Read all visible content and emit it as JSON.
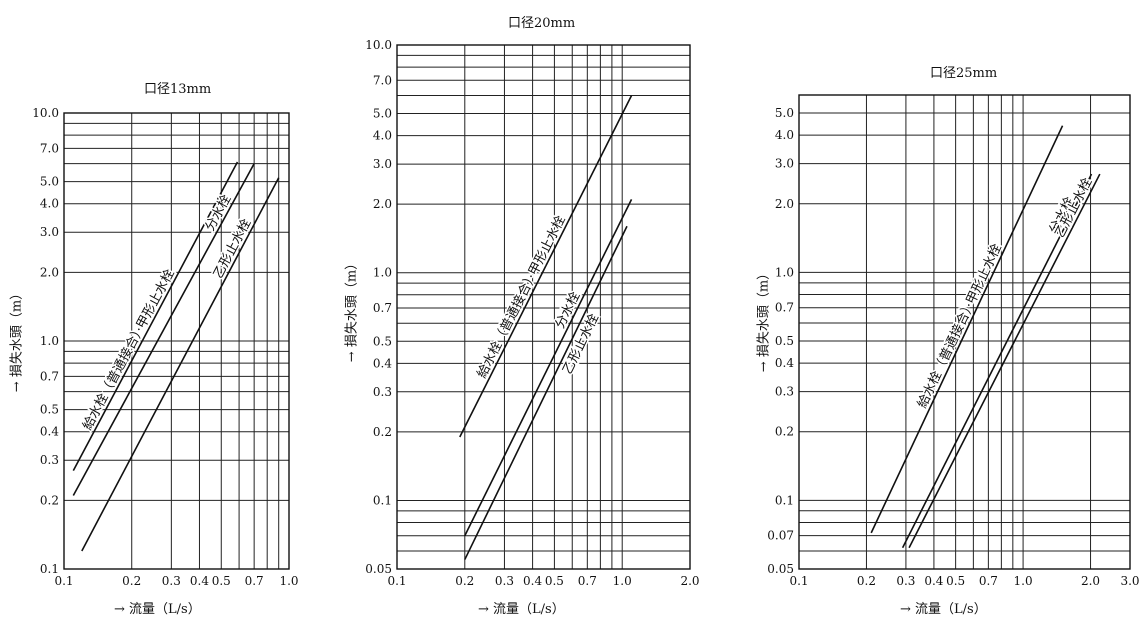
{
  "chart_data": [
    {
      "type": "line",
      "title": "口径13mm",
      "xlabel": "→ 流量（L/s）",
      "ylabel": "→ 損失水頭（m）",
      "xscale": "log",
      "yscale": "log",
      "xlim": [
        0.1,
        1.0
      ],
      "ylim": [
        0.1,
        10.0
      ],
      "x_ticks": [
        0.1,
        0.2,
        0.3,
        0.4,
        0.5,
        0.7,
        1.0
      ],
      "x_tick_labels": [
        "0.1",
        "0.2",
        "0.3",
        "0.4",
        "0.5",
        "0.7",
        "1.0"
      ],
      "y_ticks": [
        0.1,
        0.2,
        0.3,
        0.4,
        0.5,
        0.7,
        1.0,
        2.0,
        3.0,
        4.0,
        5.0,
        7.0,
        10.0
      ],
      "y_tick_labels": [
        "0.1",
        "0.2",
        "0.3",
        "0.4",
        "0.5",
        "0.7",
        "1.0",
        "2.0",
        "3.0",
        "4.0",
        "5.0",
        "7.0",
        "10.0"
      ],
      "grid": true,
      "series": [
        {
          "name": "給水栓（普通接合）·甲形止水栓",
          "x": [
            0.11,
            0.59
          ],
          "y": [
            0.27,
            6.1
          ]
        },
        {
          "name": "分水栓",
          "x": [
            0.11,
            0.7
          ],
          "y": [
            0.21,
            6.0
          ]
        },
        {
          "name": "乙形止水栓",
          "x": [
            0.12,
            0.9
          ],
          "y": [
            0.12,
            5.2
          ]
        }
      ]
    },
    {
      "type": "line",
      "title": "口径20mm",
      "xlabel": "→ 流量（L/s）",
      "ylabel": "→ 損失水頭（m）",
      "xscale": "log",
      "yscale": "log",
      "xlim": [
        0.1,
        2.0
      ],
      "ylim": [
        0.05,
        10.0
      ],
      "x_ticks": [
        0.1,
        0.2,
        0.3,
        0.4,
        0.5,
        0.7,
        1.0,
        2.0
      ],
      "x_tick_labels": [
        "0.1",
        "0.2",
        "0.3",
        "0.4",
        "0.5",
        "0.7",
        "1.0",
        "2.0"
      ],
      "y_ticks": [
        0.05,
        0.1,
        0.2,
        0.3,
        0.4,
        0.5,
        0.7,
        1.0,
        2.0,
        3.0,
        4.0,
        5.0,
        7.0,
        10.0
      ],
      "y_tick_labels": [
        "0.05",
        "0.1",
        "0.2",
        "0.3",
        "0.4",
        "0.5",
        "0.7",
        "1.0",
        "2.0",
        "3.0",
        "4.0",
        "5.0",
        "7.0",
        "10.0"
      ],
      "grid": true,
      "series": [
        {
          "name": "給水栓（普通接合）·甲形止水栓",
          "x": [
            0.19,
            1.1
          ],
          "y": [
            0.19,
            6.0
          ]
        },
        {
          "name": "分水栓",
          "x": [
            0.2,
            1.1
          ],
          "y": [
            0.07,
            2.1
          ]
        },
        {
          "name": "乙形止水栓",
          "x": [
            0.2,
            1.05
          ],
          "y": [
            0.055,
            1.6
          ]
        }
      ]
    },
    {
      "type": "line",
      "title": "口径25mm",
      "xlabel": "→ 流量（L/s）",
      "ylabel": "→ 損失水頭（m）",
      "xscale": "log",
      "yscale": "log",
      "xlim": [
        0.1,
        3.0
      ],
      "ylim": [
        0.05,
        6.0
      ],
      "x_ticks": [
        0.1,
        0.2,
        0.3,
        0.4,
        0.5,
        0.7,
        1.0,
        2.0,
        3.0
      ],
      "x_tick_labels": [
        "0.1",
        "0.2",
        "0.3",
        "0.4",
        "0.5",
        "0.7",
        "1.0",
        "2.0",
        "3.0"
      ],
      "y_ticks": [
        0.05,
        0.07,
        0.1,
        0.2,
        0.3,
        0.4,
        0.5,
        0.7,
        1.0,
        2.0,
        3.0,
        4.0,
        5.0
      ],
      "y_tick_labels": [
        "0.05",
        "0.07",
        "0.1",
        "0.2",
        "0.3",
        "0.4",
        "0.5",
        "0.7",
        "1.0",
        "2.0",
        "3.0",
        "4.0",
        "5.0"
      ],
      "grid": true,
      "series": [
        {
          "name": "給水栓（普通接合）·甲形止水栓",
          "x": [
            0.21,
            1.5
          ],
          "y": [
            0.072,
            4.4
          ]
        },
        {
          "name": "分水栓",
          "x": [
            0.29,
            2.02
          ],
          "y": [
            0.062,
            2.7
          ]
        },
        {
          "name": "乙形止水栓",
          "x": [
            0.31,
            2.2
          ],
          "y": [
            0.062,
            2.7
          ]
        }
      ]
    }
  ]
}
